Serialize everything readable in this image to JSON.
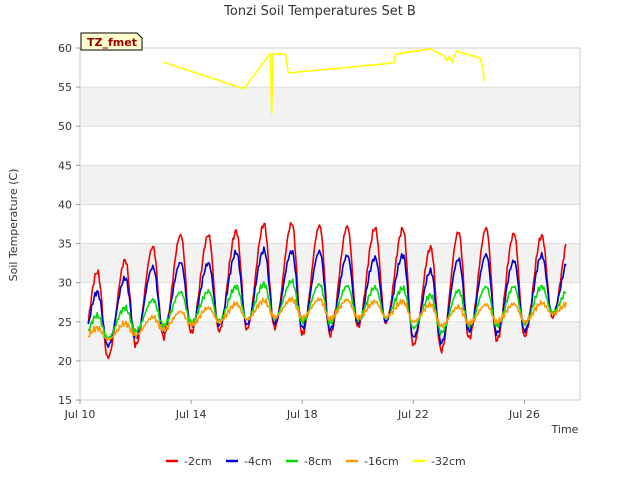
{
  "chart_data": {
    "type": "line",
    "title": "Tonzi Soil Temperatures Set B",
    "xlabel": "Time",
    "ylabel": "Soil Temperature (C)",
    "tag": "TZ_fmet",
    "ylim": [
      15,
      60
    ],
    "xlim": [
      0,
      18
    ],
    "x_unit": "days since Jul 10",
    "yticks": [
      15,
      20,
      25,
      30,
      35,
      40,
      45,
      50,
      55,
      60
    ],
    "xticks": [
      {
        "x": 0,
        "label": "Jul 10"
      },
      {
        "x": 4,
        "label": "Jul 14"
      },
      {
        "x": 8,
        "label": "Jul 18"
      },
      {
        "x": 12,
        "label": "Jul 22"
      },
      {
        "x": 16,
        "label": "Jul 26"
      }
    ],
    "grid": true,
    "legend_position": "bottom",
    "series": [
      {
        "name": "-2cm",
        "color": "#ee0000",
        "daily_min": [
          19.3,
          20.4,
          22.0,
          23.0,
          23.6,
          23.8,
          24.0,
          24.2,
          23.4,
          23.3,
          24.3,
          24.8,
          22.0,
          21.3,
          22.9,
          22.6,
          23.1,
          25.5
        ],
        "daily_max": [
          31.4,
          32.9,
          34.6,
          36.1,
          36.1,
          36.6,
          37.5,
          37.6,
          37.3,
          37.2,
          37.0,
          36.9,
          34.5,
          36.5,
          37.0,
          36.3,
          36.0,
          36.1
        ]
      },
      {
        "name": "-4cm",
        "color": "#0000cc",
        "daily_min": [
          20.8,
          21.9,
          23.0,
          23.8,
          24.4,
          24.5,
          24.6,
          24.8,
          24.2,
          24.0,
          24.8,
          25.0,
          23.0,
          22.3,
          23.8,
          23.5,
          23.8,
          26.0
        ],
        "daily_max": [
          28.8,
          30.6,
          32.0,
          32.6,
          32.5,
          33.9,
          34.2,
          34.0,
          34.0,
          33.5,
          33.2,
          33.5,
          31.5,
          33.0,
          33.6,
          32.8,
          33.5,
          33.3
        ]
      },
      {
        "name": "-8cm",
        "color": "#00dd00",
        "daily_min": [
          22.0,
          22.9,
          23.8,
          24.5,
          24.9,
          25.1,
          25.3,
          25.4,
          25.0,
          24.9,
          25.3,
          25.5,
          24.2,
          23.6,
          24.6,
          24.5,
          24.7,
          26.2
        ],
        "daily_max": [
          25.8,
          26.8,
          27.8,
          28.8,
          28.9,
          29.5,
          29.8,
          30.2,
          29.8,
          29.6,
          29.4,
          29.3,
          28.4,
          29.0,
          29.5,
          29.5,
          29.5,
          29.3
        ]
      },
      {
        "name": "-16cm",
        "color": "#ff9900",
        "daily_min": [
          22.3,
          22.7,
          23.3,
          24.0,
          24.6,
          25.0,
          25.3,
          25.6,
          25.5,
          25.4,
          25.5,
          25.6,
          25.0,
          24.5,
          24.8,
          25.0,
          25.0,
          26.0
        ],
        "daily_max": [
          24.2,
          24.8,
          25.6,
          26.3,
          26.8,
          27.3,
          27.7,
          27.9,
          27.9,
          27.8,
          27.6,
          27.6,
          27.2,
          26.9,
          27.2,
          27.3,
          27.4,
          27.5
        ]
      },
      {
        "name": "-32cm",
        "color": "#ffff00",
        "points": [
          [
            3.0,
            58.2
          ],
          [
            5.9,
            54.8
          ],
          [
            6.85,
            59.3
          ],
          [
            6.9,
            51.6
          ],
          [
            6.95,
            59.3
          ],
          [
            7.4,
            59.2
          ],
          [
            7.5,
            56.8
          ],
          [
            11.3,
            58.1
          ],
          [
            11.35,
            59.2
          ],
          [
            12.6,
            59.9
          ],
          [
            13.1,
            59.0
          ],
          [
            13.2,
            58.4
          ],
          [
            13.3,
            58.9
          ],
          [
            13.4,
            58.2
          ],
          [
            13.55,
            59.6
          ],
          [
            14.4,
            58.7
          ],
          [
            14.5,
            57.5
          ],
          [
            14.55,
            55.8
          ]
        ]
      }
    ]
  }
}
